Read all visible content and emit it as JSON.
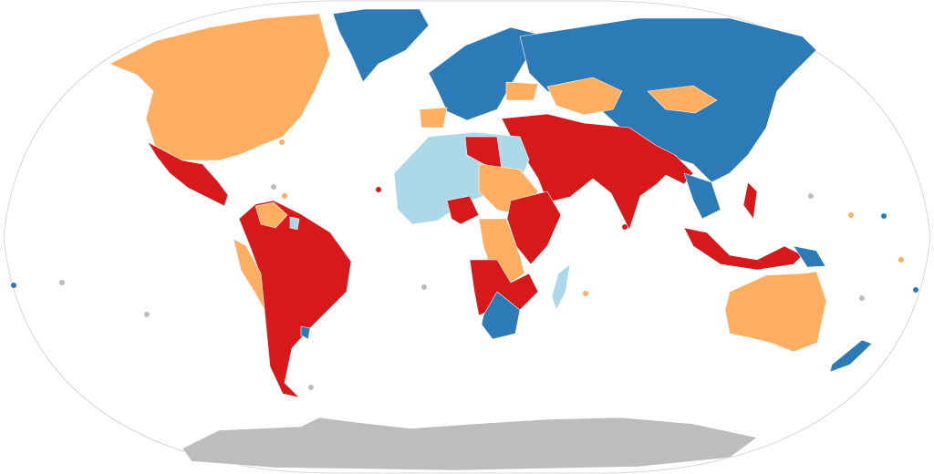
{
  "map": {
    "projection": "robinson",
    "palette": {
      "red": "#d7191c",
      "orange": "#fdae61",
      "light_blue": "#abd9e9",
      "dark_blue": "#2c7bb6",
      "no_data": "#bdbdbd",
      "ocean": "#ffffff",
      "border": "#cccccc"
    },
    "regions": {
      "antarctica": "no_data",
      "greenland": "dark_blue",
      "north-america": "orange",
      "mexico-central-america": "red",
      "south-america": "red",
      "peru": "orange",
      "venezuela-guyana": "orange",
      "suriname": "light_blue",
      "uruguay": "dark_blue",
      "europe": "dark_blue",
      "russia-china": "dark_blue",
      "kazakhstan": "orange",
      "mongolia": "orange",
      "ukraine": "orange",
      "iberia": "orange",
      "middle-east-south-asia": "red",
      "north-west-africa": "light_blue",
      "libya": "red",
      "sudan-chad": "orange",
      "nigeria": "red",
      "east-africa": "red",
      "central-africa": "orange",
      "southern-africa-north": "red",
      "south-africa": "dark_blue",
      "madagascar": "light_blue",
      "southeast-asia": "dark_blue",
      "indonesia": "red",
      "philippines": "red",
      "papua-new-guinea": "dark_blue",
      "australia": "orange",
      "new-zealand": "dark_blue"
    }
  }
}
